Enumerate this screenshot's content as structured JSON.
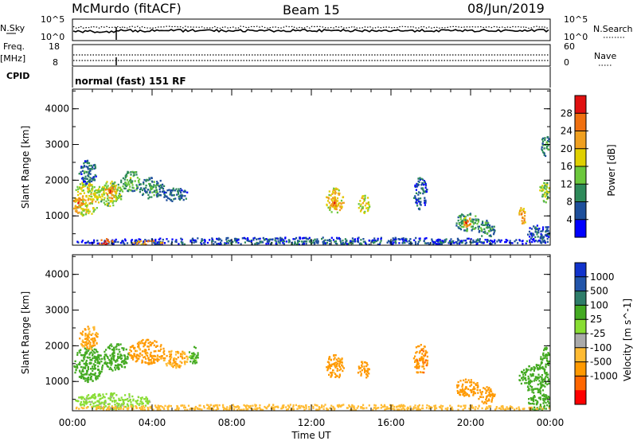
{
  "header": {
    "station": "McMurdo (fitACF)",
    "beam": "Beam 15",
    "date": "08/Jun/2019"
  },
  "top_panels": {
    "nsky_label": "N.Sky",
    "nsearch_label": "N.Search",
    "nsky_ticks": [
      "10^5",
      "10^0"
    ],
    "nsearch_ticks": [
      "10^5",
      "10^0"
    ],
    "freq_label": "Freq.",
    "freq_unit": "[MHz]",
    "freq_ticks": [
      "18",
      "8"
    ],
    "nave_label": "Nave",
    "nave_ticks": [
      "60",
      "0"
    ],
    "cpid_label": "CPID",
    "cpid_text": "normal (fast) 151 RF"
  },
  "axes": {
    "x_ticks": [
      "00:00",
      "04:00",
      "08:00",
      "12:00",
      "16:00",
      "20:00",
      "00:00"
    ],
    "x_label": "Time UT",
    "y_label": "Slant Range [km]",
    "y_ticks": [
      "1000",
      "2000",
      "3000",
      "4000"
    ]
  },
  "colors": {
    "power": [
      "#0000ff",
      "#1e4f9c",
      "#2e8a5a",
      "#6cc83c",
      "#e0d000",
      "#f0a020",
      "#f07010",
      "#e01010"
    ],
    "velocity": [
      "#ff0000",
      "#ff6600",
      "#ff9900",
      "#ffbb33",
      "#aaaaaa",
      "#88dd33",
      "#44aa22",
      "#2e7d6a",
      "#2255aa",
      "#1133cc"
    ]
  },
  "chart_data": [
    {
      "type": "heatmap",
      "name": "power",
      "x_range_hours": [
        0,
        24
      ],
      "y_range_km": [
        180,
        4550
      ],
      "colorbar": {
        "label": "Power [dB]",
        "ticks": [
          "4",
          "8",
          "12",
          "16",
          "20",
          "24",
          "28"
        ],
        "range": [
          0,
          32
        ]
      },
      "regions": [
        {
          "t0": 0.0,
          "t1": 1.3,
          "r0": 1000,
          "r1": 2000,
          "value": 20
        },
        {
          "t0": 0.0,
          "t1": 0.5,
          "r0": 1100,
          "r1": 1600,
          "value": 26
        },
        {
          "t0": 0.3,
          "t1": 1.2,
          "r0": 1900,
          "r1": 2600,
          "value": 10
        },
        {
          "t0": 1.2,
          "t1": 2.5,
          "r0": 1300,
          "r1": 2000,
          "value": 18
        },
        {
          "t0": 1.6,
          "t1": 2.2,
          "r0": 1500,
          "r1": 1900,
          "value": 26
        },
        {
          "t0": 2.4,
          "t1": 3.4,
          "r0": 1700,
          "r1": 2300,
          "value": 14
        },
        {
          "t0": 3.3,
          "t1": 4.6,
          "r0": 1500,
          "r1": 2100,
          "value": 12
        },
        {
          "t0": 4.5,
          "t1": 5.8,
          "r0": 1400,
          "r1": 1800,
          "value": 10
        },
        {
          "t0": 12.7,
          "t1": 13.6,
          "r0": 1100,
          "r1": 1800,
          "value": 22
        },
        {
          "t0": 12.9,
          "t1": 13.3,
          "r0": 1200,
          "r1": 1500,
          "value": 26
        },
        {
          "t0": 14.3,
          "t1": 14.9,
          "r0": 1100,
          "r1": 1600,
          "value": 20
        },
        {
          "t0": 17.1,
          "t1": 17.8,
          "r0": 1200,
          "r1": 2100,
          "value": 9
        },
        {
          "t0": 19.2,
          "t1": 20.4,
          "r0": 600,
          "r1": 1100,
          "value": 14
        },
        {
          "t0": 19.6,
          "t1": 20.0,
          "r0": 700,
          "r1": 1000,
          "value": 26
        },
        {
          "t0": 20.3,
          "t1": 21.2,
          "r0": 400,
          "r1": 900,
          "value": 12
        },
        {
          "t0": 22.4,
          "t1": 22.8,
          "r0": 800,
          "r1": 1300,
          "value": 24
        },
        {
          "t0": 22.8,
          "t1": 24.0,
          "r0": 300,
          "r1": 800,
          "value": 8
        },
        {
          "t0": 23.4,
          "t1": 24.0,
          "r0": 1400,
          "r1": 2000,
          "value": 16
        },
        {
          "t0": 23.5,
          "t1": 24.0,
          "r0": 2700,
          "r1": 3300,
          "value": 12
        },
        {
          "t0": 0.0,
          "t1": 24.0,
          "r0": 180,
          "r1": 420,
          "value": 8
        },
        {
          "t0": 1.3,
          "t1": 2.0,
          "r0": 180,
          "r1": 380,
          "value": 28
        },
        {
          "t0": 3.0,
          "t1": 4.5,
          "r0": 180,
          "r1": 330,
          "value": 26
        }
      ]
    },
    {
      "type": "heatmap",
      "name": "velocity",
      "x_range_hours": [
        0,
        24
      ],
      "y_range_km": [
        180,
        4550
      ],
      "colorbar": {
        "label": "Velocity [m s^-1]",
        "ticks": [
          "1000",
          "500",
          "100",
          "25",
          "-25",
          "-100",
          "-500",
          "-1000"
        ]
      },
      "regions": [
        {
          "t0": 0.0,
          "t1": 1.5,
          "r0": 1000,
          "r1": 2000,
          "value": 300
        },
        {
          "t0": 0.3,
          "t1": 1.3,
          "r0": 1900,
          "r1": 2600,
          "value": -100
        },
        {
          "t0": 1.5,
          "t1": 2.8,
          "r0": 1300,
          "r1": 2100,
          "value": 200
        },
        {
          "t0": 2.8,
          "t1": 4.6,
          "r0": 1500,
          "r1": 2200,
          "value": -150
        },
        {
          "t0": 4.5,
          "t1": 5.8,
          "r0": 1400,
          "r1": 1900,
          "value": -100
        },
        {
          "t0": 5.8,
          "t1": 6.3,
          "r0": 1500,
          "r1": 2000,
          "value": 150
        },
        {
          "t0": 12.7,
          "t1": 13.6,
          "r0": 1100,
          "r1": 1800,
          "value": -150
        },
        {
          "t0": 14.3,
          "t1": 14.9,
          "r0": 1100,
          "r1": 1600,
          "value": -150
        },
        {
          "t0": 17.1,
          "t1": 17.8,
          "r0": 1200,
          "r1": 2100,
          "value": -400
        },
        {
          "t0": 19.2,
          "t1": 20.4,
          "r0": 600,
          "r1": 1100,
          "value": -200
        },
        {
          "t0": 20.3,
          "t1": 21.2,
          "r0": 400,
          "r1": 900,
          "value": -300
        },
        {
          "t0": 22.4,
          "t1": 24.0,
          "r0": 700,
          "r1": 1500,
          "value": 300
        },
        {
          "t0": 22.8,
          "t1": 24.0,
          "r0": 200,
          "r1": 700,
          "value": 200
        },
        {
          "t0": 23.4,
          "t1": 24.0,
          "r0": 1400,
          "r1": 2000,
          "value": 300
        },
        {
          "t0": 0.0,
          "t1": 4.0,
          "r0": 250,
          "r1": 700,
          "value": 50
        },
        {
          "t0": 0.0,
          "t1": 24.0,
          "r0": 180,
          "r1": 380,
          "value": -60
        }
      ]
    }
  ]
}
